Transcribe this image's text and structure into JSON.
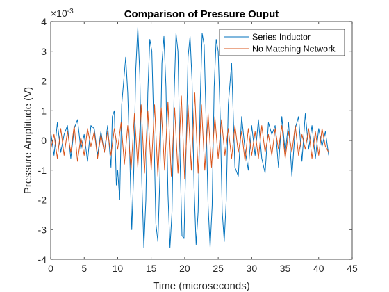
{
  "chart_data": {
    "type": "line",
    "title": "Comparison of Pressure Ouput",
    "xlabel": "Time (microseconds)",
    "ylabel": "Pressure Amplitude (V)",
    "y_exponent_label": "×10",
    "y_exponent_power": "-3",
    "xlim": [
      0,
      45
    ],
    "ylim": [
      -4,
      4
    ],
    "y_scale_factor": 0.001,
    "x_ticks": [
      "0",
      "5",
      "10",
      "15",
      "20",
      "25",
      "30",
      "35",
      "40",
      "45"
    ],
    "y_ticks": [
      "-4",
      "-3",
      "-2",
      "-1",
      "0",
      "1",
      "2",
      "3",
      "4"
    ],
    "legend_position": "top-right",
    "grid": false,
    "series": [
      {
        "name": "Series Inductor",
        "color": "#0072BD",
        "x": [
          0.0,
          0.5,
          1.0,
          1.5,
          2.0,
          2.5,
          3.0,
          3.5,
          4.0,
          4.5,
          5.0,
          5.5,
          6.0,
          6.5,
          7.0,
          7.5,
          8.0,
          8.5,
          9.0,
          9.2,
          9.5,
          9.8,
          10.0,
          10.3,
          10.6,
          10.9,
          11.2,
          11.5,
          11.8,
          12.1,
          12.4,
          12.7,
          13.0,
          13.3,
          13.6,
          13.9,
          14.2,
          14.5,
          14.8,
          15.1,
          15.4,
          15.7,
          16.0,
          16.3,
          16.6,
          16.9,
          17.2,
          17.5,
          17.8,
          18.1,
          18.4,
          18.7,
          19.0,
          19.3,
          19.6,
          19.9,
          20.2,
          20.5,
          20.8,
          21.1,
          21.4,
          21.7,
          22.0,
          22.3,
          22.6,
          22.9,
          23.2,
          23.5,
          23.8,
          24.1,
          24.4,
          24.7,
          25.0,
          25.3,
          25.6,
          25.9,
          26.2,
          26.5,
          27.0,
          27.5,
          28.0,
          28.5,
          29.0,
          29.5,
          30.0,
          30.5,
          31.0,
          31.5,
          32.0,
          32.5,
          33.0,
          33.5,
          34.0,
          34.5,
          35.0,
          35.5,
          36.0,
          36.5,
          37.0,
          37.5,
          38.0,
          38.5,
          39.0,
          39.5,
          40.0,
          40.5,
          41.0,
          41.5
        ],
        "y": [
          0.3,
          -0.5,
          0.6,
          -0.4,
          0.2,
          0.5,
          -0.6,
          0.4,
          0.7,
          -0.3,
          0.2,
          -0.7,
          0.5,
          0.4,
          -0.5,
          0.3,
          -0.4,
          0.5,
          -0.9,
          0.8,
          1.0,
          -1.5,
          -1.0,
          -2.0,
          1.2,
          2.0,
          2.8,
          1.6,
          -0.5,
          -3.0,
          -1.0,
          2.4,
          3.8,
          2.2,
          -1.4,
          -3.6,
          -2.0,
          1.6,
          3.4,
          3.0,
          0.4,
          -2.8,
          -3.4,
          -1.2,
          2.6,
          3.5,
          1.8,
          -1.8,
          -3.6,
          -2.4,
          1.4,
          3.6,
          3.0,
          -0.5,
          -3.2,
          -3.3,
          -0.4,
          2.8,
          3.5,
          2.0,
          -1.6,
          -3.5,
          -2.4,
          1.2,
          3.6,
          3.2,
          0.6,
          -2.2,
          -3.6,
          -2.2,
          1.8,
          3.4,
          3.0,
          0.8,
          -2.4,
          -3.4,
          -2.0,
          1.2,
          2.6,
          -0.9,
          -1.2,
          0.8,
          -0.3,
          -1.0,
          0.5,
          -0.5,
          0.7,
          -0.6,
          -1.1,
          0.6,
          0.2,
          0.5,
          -0.9,
          0.8,
          -0.4,
          0.6,
          -1.2,
          0.4,
          0.8,
          -0.7,
          0.9,
          -0.3,
          0.5,
          -0.6,
          0.4,
          -0.2,
          0.3,
          -0.5
        ]
      },
      {
        "name": "No Matching Network",
        "color": "#D95319",
        "x": [
          0.0,
          0.5,
          1.0,
          1.5,
          2.0,
          2.5,
          3.0,
          3.5,
          4.0,
          4.5,
          5.0,
          5.5,
          6.0,
          6.5,
          7.0,
          7.5,
          8.0,
          8.5,
          9.0,
          9.5,
          10.0,
          10.5,
          11.0,
          11.5,
          12.0,
          12.5,
          13.0,
          13.5,
          14.0,
          14.5,
          15.0,
          15.5,
          16.0,
          16.5,
          17.0,
          17.5,
          18.0,
          18.5,
          19.0,
          19.5,
          20.0,
          20.5,
          21.0,
          21.5,
          22.0,
          22.5,
          23.0,
          23.5,
          24.0,
          24.5,
          25.0,
          25.5,
          26.0,
          26.5,
          27.0,
          27.5,
          28.0,
          28.5,
          29.0,
          29.5,
          30.0,
          30.5,
          31.0,
          31.5,
          32.0,
          32.5,
          33.0,
          33.5,
          34.0,
          34.5,
          35.0,
          35.5,
          36.0,
          36.5,
          37.0,
          37.5,
          38.0,
          38.5,
          39.0,
          39.5,
          40.0,
          40.5,
          41.0,
          41.5
        ],
        "y": [
          -0.3,
          0.2,
          -0.6,
          0.4,
          -0.5,
          0.3,
          -0.4,
          0.5,
          -0.7,
          0.1,
          -0.5,
          0.4,
          -0.2,
          0.3,
          -0.6,
          0.2,
          -0.4,
          0.3,
          -0.5,
          0.4,
          -0.3,
          0.6,
          -0.8,
          0.5,
          -1.0,
          0.9,
          -0.9,
          1.2,
          -1.1,
          1.0,
          -1.0,
          1.2,
          -1.2,
          1.1,
          -1.0,
          1.3,
          -1.2,
          1.1,
          -1.1,
          1.5,
          -1.3,
          1.2,
          -1.0,
          1.6,
          -1.1,
          1.2,
          -1.0,
          0.9,
          -0.9,
          0.8,
          -0.6,
          0.7,
          -0.5,
          0.4,
          -0.6,
          0.5,
          -0.4,
          0.3,
          -0.7,
          0.4,
          -0.5,
          0.3,
          -0.6,
          0.5,
          -0.4,
          0.2,
          -0.5,
          0.4,
          -0.3,
          0.5,
          -0.6,
          0.3,
          -0.4,
          0.5,
          -0.5,
          0.2,
          -0.3,
          0.4,
          -0.6,
          0.3,
          -0.5,
          0.4,
          -0.2,
          -0.4
        ]
      }
    ]
  }
}
